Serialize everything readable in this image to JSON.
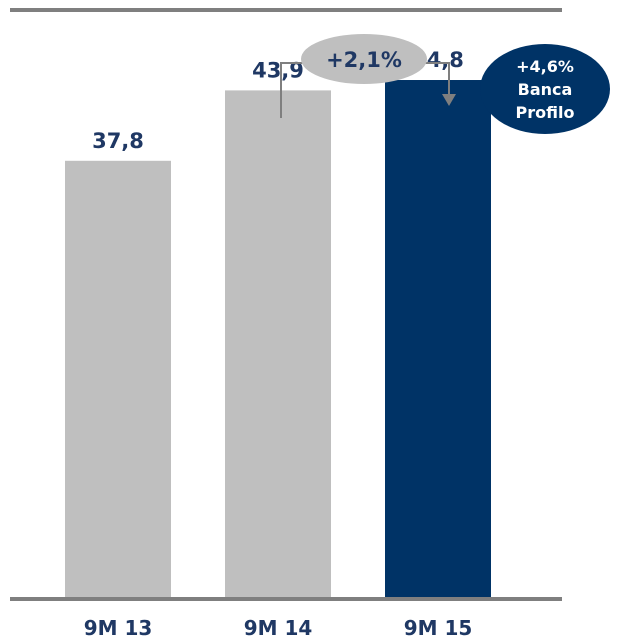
{
  "chart_data": {
    "type": "bar",
    "categories": [
      "9M 13",
      "9M 14",
      "9M 15"
    ],
    "values": [
      37.8,
      43.9,
      44.8
    ],
    "value_labels": [
      "37,8",
      "43,9",
      "44,8"
    ],
    "ylim": [
      0,
      50
    ],
    "grid": false,
    "colors": {
      "default_bar": "#bfbfbf",
      "highlight_bar": "#003366",
      "label_text": "#1f3864",
      "axis_line": "#7f7f7f",
      "growth_pill": "#bfbfbf",
      "badge_fill": "#003366",
      "badge_text": "#ffffff",
      "arrow": "#7f7f7f"
    },
    "highlight_index": 2,
    "annotations": {
      "growth": {
        "label": "+2,1%",
        "from": "9M 14",
        "to": "9M 15"
      },
      "badge": {
        "lines": [
          "+4,6%",
          "Banca",
          "Profilo"
        ]
      }
    }
  }
}
